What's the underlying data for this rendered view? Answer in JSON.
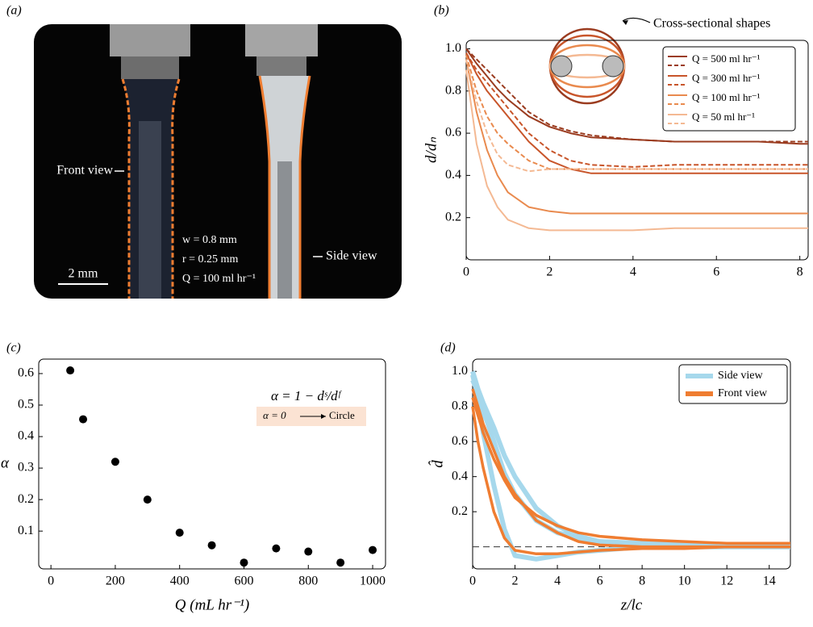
{
  "photo": {
    "panel": "(a)",
    "front": "Front view",
    "side": "Side view",
    "w": "w = 0.8 mm",
    "r": "r = 0.25 mm",
    "q": "Q = 100 ml hr⁻¹",
    "scale": "2 mm"
  },
  "chart_data": [
    {
      "type": "line",
      "panel": "(b)",
      "ylabel": "d/dₙ",
      "annotation": "Cross-sectional shapes",
      "xlim": [
        0,
        8.2
      ],
      "ylim": [
        0,
        1.04
      ],
      "xticks": [
        0,
        2,
        4,
        6,
        8
      ],
      "yticks": [
        0.2,
        0.4,
        0.6,
        0.8,
        {
          "value": 1,
          "label": "1.0"
        }
      ],
      "x": [
        0,
        0.25,
        0.5,
        0.75,
        1,
        1.5,
        2,
        2.5,
        3,
        4,
        5,
        6,
        7,
        8,
        8.2
      ],
      "series": [
        {
          "name": "Q = 500 ml hr⁻¹",
          "color": "#9b3c20",
          "values": [
            1.0,
            0.93,
            0.87,
            0.81,
            0.76,
            0.68,
            0.63,
            0.6,
            0.58,
            0.57,
            0.56,
            0.56,
            0.56,
            0.55,
            0.55
          ],
          "dashed_values": [
            1.0,
            0.95,
            0.9,
            0.85,
            0.8,
            0.7,
            0.64,
            0.61,
            0.59,
            0.57,
            0.56,
            0.56,
            0.56,
            0.56,
            0.56
          ]
        },
        {
          "name": "Q = 300 ml hr⁻¹",
          "color": "#c8552a",
          "values": [
            0.98,
            0.88,
            0.8,
            0.74,
            0.68,
            0.56,
            0.47,
            0.43,
            0.41,
            0.41,
            0.41,
            0.41,
            0.41,
            0.41,
            0.41
          ],
          "dashed_values": [
            0.98,
            0.9,
            0.84,
            0.78,
            0.72,
            0.6,
            0.52,
            0.47,
            0.45,
            0.44,
            0.45,
            0.45,
            0.45,
            0.45,
            0.45
          ]
        },
        {
          "name": "Q = 100 ml hr⁻¹",
          "color": "#e98a4e",
          "values": [
            0.95,
            0.7,
            0.52,
            0.4,
            0.32,
            0.25,
            0.23,
            0.22,
            0.22,
            0.22,
            0.22,
            0.22,
            0.22,
            0.22,
            0.22
          ],
          "dashed_values": [
            0.97,
            0.8,
            0.68,
            0.6,
            0.55,
            0.47,
            0.43,
            0.43,
            0.43,
            0.43,
            0.43,
            0.43,
            0.43,
            0.43,
            0.43
          ]
        },
        {
          "name": "Q = 50 ml hr⁻¹",
          "color": "#f4b993",
          "values": [
            0.9,
            0.55,
            0.35,
            0.25,
            0.19,
            0.15,
            0.14,
            0.14,
            0.14,
            0.14,
            0.15,
            0.15,
            0.15,
            0.15,
            0.15
          ],
          "dashed_values": [
            0.95,
            0.75,
            0.6,
            0.5,
            0.45,
            0.42,
            0.43,
            0.43,
            0.43,
            0.43,
            0.43,
            0.43,
            0.43,
            0.43,
            0.43
          ]
        }
      ]
    },
    {
      "type": "scatter",
      "panel": "(c)",
      "xlabel": "Q (mL hr⁻¹)",
      "ylabel": "α",
      "formula": "α = 1 − dˢ/dᶠ",
      "note_left": "α = 0",
      "note_right": "Circle",
      "xlim": [
        -38,
        1040
      ],
      "ylim": [
        -0.02,
        0.646
      ],
      "xticks": [
        0,
        200,
        400,
        600,
        800,
        1000
      ],
      "yticks": [
        0.1,
        0.2,
        0.3,
        0.4,
        0.5,
        0.6
      ],
      "color": "#000000",
      "x": [
        60,
        100,
        200,
        300,
        400,
        500,
        600,
        700,
        800,
        900,
        1000
      ],
      "values": [
        0.61,
        0.455,
        0.32,
        0.2,
        0.095,
        0.055,
        0.0,
        0.045,
        0.035,
        0.0,
        0.04
      ]
    },
    {
      "type": "line",
      "panel": "(d)",
      "xlabel": "z/lc",
      "ylabel": "d̂",
      "xlim": [
        0,
        15
      ],
      "ylim": [
        -0.126,
        1.07
      ],
      "xticks": [
        0,
        2,
        4,
        6,
        8,
        10,
        12,
        14
      ],
      "yticks": [
        0.2,
        0.4,
        0.6,
        0.8,
        {
          "value": 1,
          "label": "1.0"
        }
      ],
      "hline": 0,
      "x": [
        0,
        0.25,
        0.5,
        1,
        1.5,
        2,
        3,
        4,
        5,
        6,
        8,
        10,
        12,
        15
      ],
      "series": [
        {
          "name": "Side view",
          "color": "#a6d8ec",
          "values": [
            [
              0.98,
              0.85,
              0.65,
              0.35,
              0.1,
              -0.05,
              -0.07,
              -0.05,
              -0.03,
              -0.02,
              0,
              0,
              0,
              0
            ],
            [
              0.95,
              0.88,
              0.78,
              0.6,
              0.42,
              0.3,
              0.15,
              0.08,
              0.05,
              0.03,
              0.02,
              0.01,
              0.01,
              0.01
            ],
            [
              1.0,
              0.9,
              0.82,
              0.68,
              0.52,
              0.4,
              0.22,
              0.12,
              0.06,
              0.03,
              0.01,
              0,
              0,
              0
            ]
          ]
        },
        {
          "name": "Front view",
          "color": "#ef7d31",
          "values": [
            [
              0.9,
              0.8,
              0.7,
              0.55,
              0.4,
              0.3,
              0.15,
              0.08,
              0.03,
              0.01,
              0,
              0,
              0,
              0
            ],
            [
              0.85,
              0.75,
              0.65,
              0.5,
              0.38,
              0.28,
              0.18,
              0.12,
              0.08,
              0.06,
              0.04,
              0.03,
              0.02,
              0.02
            ],
            [
              0.8,
              0.6,
              0.45,
              0.2,
              0.05,
              -0.02,
              -0.04,
              -0.04,
              -0.03,
              -0.02,
              -0.01,
              -0.01,
              0,
              0
            ]
          ]
        }
      ]
    }
  ]
}
